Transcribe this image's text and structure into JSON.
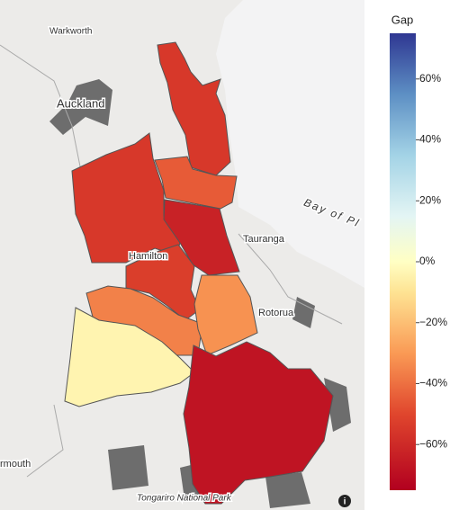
{
  "chart_data": {
    "type": "choropleth",
    "place_labels": [
      "Warkworth",
      "Auckland",
      "Hamilton",
      "Tauranga",
      "Rotorua",
      "Bay of Pl",
      "Tongariro National Park",
      "rmouth"
    ],
    "values": [
      -55,
      -45,
      -55,
      -63,
      -53,
      -36,
      -4,
      -32,
      -68
    ],
    "colorbar": {
      "title": "Gap",
      "zlim": [
        -75,
        75
      ],
      "ticks": [
        {
          "value": 60,
          "label": "60%"
        },
        {
          "value": 40,
          "label": "40%"
        },
        {
          "value": 20,
          "label": "20%"
        },
        {
          "value": 0,
          "label": "0%"
        },
        {
          "value": -20,
          "label": "−20%"
        },
        {
          "value": -40,
          "label": "−40%"
        },
        {
          "value": -60,
          "label": "−60%"
        }
      ],
      "colorscale": [
        [
          -75,
          "#b2001f"
        ],
        [
          -50,
          "#e0462d"
        ],
        [
          -30,
          "#fa9a55"
        ],
        [
          -10,
          "#fee393"
        ],
        [
          0,
          "#ffffc4"
        ],
        [
          15,
          "#e3f5f4"
        ],
        [
          35,
          "#a3d3e6"
        ],
        [
          55,
          "#5d8fc4"
        ],
        [
          75,
          "#2f3792"
        ]
      ]
    }
  }
}
